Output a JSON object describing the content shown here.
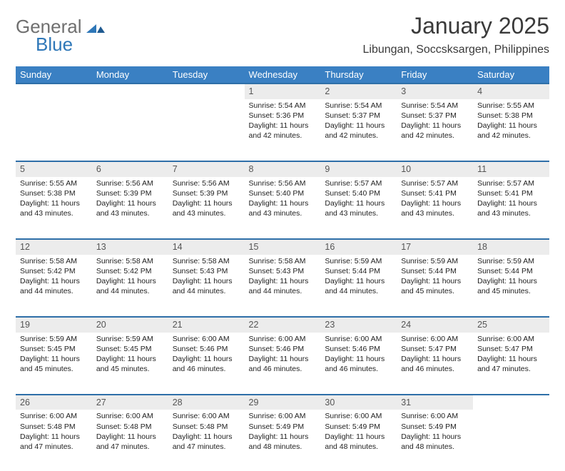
{
  "logo": {
    "word1": "General",
    "word2": "Blue"
  },
  "title": "January 2025",
  "subtitle": "Libungan, Soccsksargen, Philippines",
  "colors": {
    "header_bg": "#3a80c3",
    "header_text": "#ffffff",
    "daynum_bg": "#ececec",
    "daynum_border": "#2e6fa8",
    "logo_gray": "#6f6f6f",
    "logo_blue": "#2e77b8",
    "body_text": "#222222",
    "page_bg": "#ffffff"
  },
  "typography": {
    "title_fontsize": 32,
    "subtitle_fontsize": 16,
    "weekday_fontsize": 13,
    "daynum_fontsize": 12.5,
    "cell_fontsize": 10.5,
    "font_family": "Arial"
  },
  "calendar": {
    "type": "table",
    "columns": [
      "Sunday",
      "Monday",
      "Tuesday",
      "Wednesday",
      "Thursday",
      "Friday",
      "Saturday"
    ],
    "weeks": [
      [
        null,
        null,
        null,
        {
          "n": "1",
          "sr": "Sunrise: 5:54 AM",
          "ss": "Sunset: 5:36 PM",
          "d1": "Daylight: 11 hours",
          "d2": "and 42 minutes."
        },
        {
          "n": "2",
          "sr": "Sunrise: 5:54 AM",
          "ss": "Sunset: 5:37 PM",
          "d1": "Daylight: 11 hours",
          "d2": "and 42 minutes."
        },
        {
          "n": "3",
          "sr": "Sunrise: 5:54 AM",
          "ss": "Sunset: 5:37 PM",
          "d1": "Daylight: 11 hours",
          "d2": "and 42 minutes."
        },
        {
          "n": "4",
          "sr": "Sunrise: 5:55 AM",
          "ss": "Sunset: 5:38 PM",
          "d1": "Daylight: 11 hours",
          "d2": "and 42 minutes."
        }
      ],
      [
        {
          "n": "5",
          "sr": "Sunrise: 5:55 AM",
          "ss": "Sunset: 5:38 PM",
          "d1": "Daylight: 11 hours",
          "d2": "and 43 minutes."
        },
        {
          "n": "6",
          "sr": "Sunrise: 5:56 AM",
          "ss": "Sunset: 5:39 PM",
          "d1": "Daylight: 11 hours",
          "d2": "and 43 minutes."
        },
        {
          "n": "7",
          "sr": "Sunrise: 5:56 AM",
          "ss": "Sunset: 5:39 PM",
          "d1": "Daylight: 11 hours",
          "d2": "and 43 minutes."
        },
        {
          "n": "8",
          "sr": "Sunrise: 5:56 AM",
          "ss": "Sunset: 5:40 PM",
          "d1": "Daylight: 11 hours",
          "d2": "and 43 minutes."
        },
        {
          "n": "9",
          "sr": "Sunrise: 5:57 AM",
          "ss": "Sunset: 5:40 PM",
          "d1": "Daylight: 11 hours",
          "d2": "and 43 minutes."
        },
        {
          "n": "10",
          "sr": "Sunrise: 5:57 AM",
          "ss": "Sunset: 5:41 PM",
          "d1": "Daylight: 11 hours",
          "d2": "and 43 minutes."
        },
        {
          "n": "11",
          "sr": "Sunrise: 5:57 AM",
          "ss": "Sunset: 5:41 PM",
          "d1": "Daylight: 11 hours",
          "d2": "and 43 minutes."
        }
      ],
      [
        {
          "n": "12",
          "sr": "Sunrise: 5:58 AM",
          "ss": "Sunset: 5:42 PM",
          "d1": "Daylight: 11 hours",
          "d2": "and 44 minutes."
        },
        {
          "n": "13",
          "sr": "Sunrise: 5:58 AM",
          "ss": "Sunset: 5:42 PM",
          "d1": "Daylight: 11 hours",
          "d2": "and 44 minutes."
        },
        {
          "n": "14",
          "sr": "Sunrise: 5:58 AM",
          "ss": "Sunset: 5:43 PM",
          "d1": "Daylight: 11 hours",
          "d2": "and 44 minutes."
        },
        {
          "n": "15",
          "sr": "Sunrise: 5:58 AM",
          "ss": "Sunset: 5:43 PM",
          "d1": "Daylight: 11 hours",
          "d2": "and 44 minutes."
        },
        {
          "n": "16",
          "sr": "Sunrise: 5:59 AM",
          "ss": "Sunset: 5:44 PM",
          "d1": "Daylight: 11 hours",
          "d2": "and 44 minutes."
        },
        {
          "n": "17",
          "sr": "Sunrise: 5:59 AM",
          "ss": "Sunset: 5:44 PM",
          "d1": "Daylight: 11 hours",
          "d2": "and 45 minutes."
        },
        {
          "n": "18",
          "sr": "Sunrise: 5:59 AM",
          "ss": "Sunset: 5:44 PM",
          "d1": "Daylight: 11 hours",
          "d2": "and 45 minutes."
        }
      ],
      [
        {
          "n": "19",
          "sr": "Sunrise: 5:59 AM",
          "ss": "Sunset: 5:45 PM",
          "d1": "Daylight: 11 hours",
          "d2": "and 45 minutes."
        },
        {
          "n": "20",
          "sr": "Sunrise: 5:59 AM",
          "ss": "Sunset: 5:45 PM",
          "d1": "Daylight: 11 hours",
          "d2": "and 45 minutes."
        },
        {
          "n": "21",
          "sr": "Sunrise: 6:00 AM",
          "ss": "Sunset: 5:46 PM",
          "d1": "Daylight: 11 hours",
          "d2": "and 46 minutes."
        },
        {
          "n": "22",
          "sr": "Sunrise: 6:00 AM",
          "ss": "Sunset: 5:46 PM",
          "d1": "Daylight: 11 hours",
          "d2": "and 46 minutes."
        },
        {
          "n": "23",
          "sr": "Sunrise: 6:00 AM",
          "ss": "Sunset: 5:46 PM",
          "d1": "Daylight: 11 hours",
          "d2": "and 46 minutes."
        },
        {
          "n": "24",
          "sr": "Sunrise: 6:00 AM",
          "ss": "Sunset: 5:47 PM",
          "d1": "Daylight: 11 hours",
          "d2": "and 46 minutes."
        },
        {
          "n": "25",
          "sr": "Sunrise: 6:00 AM",
          "ss": "Sunset: 5:47 PM",
          "d1": "Daylight: 11 hours",
          "d2": "and 47 minutes."
        }
      ],
      [
        {
          "n": "26",
          "sr": "Sunrise: 6:00 AM",
          "ss": "Sunset: 5:48 PM",
          "d1": "Daylight: 11 hours",
          "d2": "and 47 minutes."
        },
        {
          "n": "27",
          "sr": "Sunrise: 6:00 AM",
          "ss": "Sunset: 5:48 PM",
          "d1": "Daylight: 11 hours",
          "d2": "and 47 minutes."
        },
        {
          "n": "28",
          "sr": "Sunrise: 6:00 AM",
          "ss": "Sunset: 5:48 PM",
          "d1": "Daylight: 11 hours",
          "d2": "and 47 minutes."
        },
        {
          "n": "29",
          "sr": "Sunrise: 6:00 AM",
          "ss": "Sunset: 5:49 PM",
          "d1": "Daylight: 11 hours",
          "d2": "and 48 minutes."
        },
        {
          "n": "30",
          "sr": "Sunrise: 6:00 AM",
          "ss": "Sunset: 5:49 PM",
          "d1": "Daylight: 11 hours",
          "d2": "and 48 minutes."
        },
        {
          "n": "31",
          "sr": "Sunrise: 6:00 AM",
          "ss": "Sunset: 5:49 PM",
          "d1": "Daylight: 11 hours",
          "d2": "and 48 minutes."
        },
        null
      ]
    ]
  }
}
